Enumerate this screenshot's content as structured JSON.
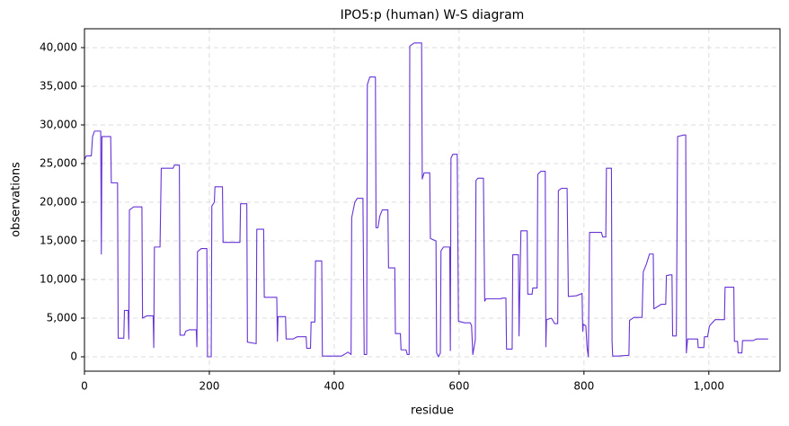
{
  "chart_data": {
    "type": "line",
    "title": "IPO5:p (human) W-S diagram",
    "x_label": "residue",
    "y_label": "observations",
    "x": [
      0,
      3,
      11,
      13,
      16,
      26,
      27,
      28,
      42,
      43,
      53,
      54,
      63,
      64,
      70,
      71,
      72,
      79,
      92,
      93,
      100,
      110,
      111,
      112,
      121,
      123,
      142,
      144,
      152,
      153,
      160,
      162,
      168,
      179,
      180,
      181,
      187,
      196,
      197,
      203,
      204,
      208,
      209,
      221,
      222,
      249,
      250,
      260,
      261,
      275,
      276,
      287,
      288,
      308,
      309,
      310,
      322,
      323,
      334,
      341,
      355,
      356,
      362,
      363,
      369,
      370,
      380,
      381,
      412,
      416,
      422,
      427,
      428,
      433,
      437,
      446,
      448,
      452,
      453,
      457,
      466,
      467,
      470,
      473,
      477,
      486,
      487,
      497,
      498,
      506,
      507,
      515,
      517,
      520,
      521,
      528,
      540,
      541,
      544,
      553,
      554,
      563,
      564,
      567,
      570,
      571,
      575,
      585,
      586,
      587,
      590,
      597,
      599,
      609,
      618,
      620,
      622,
      626,
      627,
      630,
      639,
      641,
      643,
      667,
      669,
      675,
      676,
      685,
      686,
      695,
      696,
      699,
      709,
      710,
      717,
      718,
      725,
      726,
      731,
      738,
      739,
      740,
      748,
      753,
      758,
      759,
      764,
      773,
      775,
      788,
      797,
      798,
      799,
      803,
      805,
      807,
      809,
      828,
      830,
      835,
      836,
      844,
      845,
      846,
      854,
      872,
      873,
      880,
      893,
      895,
      900,
      905,
      911,
      912,
      918,
      924,
      931,
      932,
      938,
      941,
      942,
      948,
      949,
      950,
      960,
      963,
      964,
      966,
      982,
      983,
      992,
      993,
      998,
      1001,
      1010,
      1025,
      1026,
      1040,
      1041,
      1046,
      1047,
      1053,
      1054,
      1071,
      1076,
      1095
    ],
    "series": [
      {
        "name": "observations",
        "color": "#6633d6",
        "values": [
          25500,
          26000,
          26000,
          28500,
          29200,
          29200,
          13300,
          28500,
          28500,
          22500,
          22500,
          2400,
          2400,
          6000,
          6000,
          2300,
          19000,
          19400,
          19400,
          5000,
          5300,
          5300,
          1200,
          14200,
          14200,
          24400,
          24400,
          24800,
          24800,
          2800,
          2800,
          3300,
          3500,
          3500,
          1300,
          13600,
          14000,
          14000,
          0,
          0,
          19500,
          20000,
          22000,
          22000,
          14800,
          14800,
          19800,
          19800,
          1900,
          1700,
          16500,
          16500,
          7700,
          7700,
          2000,
          5200,
          5200,
          2300,
          2300,
          2600,
          2600,
          1100,
          1100,
          4500,
          4500,
          12400,
          12400,
          100,
          100,
          300,
          600,
          300,
          18000,
          20000,
          20500,
          20500,
          300,
          300,
          35200,
          36200,
          36200,
          16700,
          16700,
          18200,
          19000,
          19000,
          11500,
          11500,
          3000,
          3000,
          900,
          900,
          300,
          300,
          40200,
          40600,
          40600,
          23000,
          23800,
          23800,
          15300,
          15000,
          500,
          0,
          500,
          13700,
          14200,
          14200,
          800,
          25700,
          26200,
          26200,
          4600,
          4400,
          4400,
          4000,
          300,
          2200,
          22800,
          23100,
          23100,
          7200,
          7500,
          7500,
          7600,
          7600,
          1000,
          1000,
          13200,
          13200,
          2700,
          16300,
          16300,
          8100,
          8100,
          8900,
          8900,
          23600,
          24000,
          24000,
          1300,
          4800,
          5000,
          4300,
          4300,
          21500,
          21800,
          21800,
          7800,
          7900,
          8200,
          3300,
          4200,
          4000,
          1200,
          0,
          16100,
          16100,
          15500,
          15500,
          24400,
          24400,
          2000,
          100,
          100,
          200,
          4700,
          5100,
          5100,
          11000,
          12000,
          13300,
          13300,
          6200,
          6500,
          6800,
          6800,
          10500,
          10600,
          10600,
          2700,
          2700,
          15500,
          28500,
          28700,
          28700,
          500,
          2300,
          2300,
          1200,
          1200,
          2600,
          2600,
          4000,
          4800,
          4800,
          9000,
          9000,
          2000,
          2000,
          500,
          500,
          2100,
          2100,
          2300,
          2300
        ]
      }
    ],
    "xlim": [
      0,
      1114
    ],
    "xticks": [
      0,
      200,
      400,
      600,
      800,
      {
        "value": 1000,
        "label": "1,000"
      }
    ],
    "ylim": [
      -1860,
      42440
    ],
    "yticks": [
      0,
      {
        "value": 5000,
        "label": "5,000"
      },
      {
        "value": 10000,
        "label": "10,000"
      },
      {
        "value": 15000,
        "label": "15,000"
      },
      {
        "value": 20000,
        "label": "20,000"
      },
      {
        "value": 25000,
        "label": "25,000"
      },
      {
        "value": 30000,
        "label": "30,000"
      },
      {
        "value": 35000,
        "label": "35,000"
      },
      {
        "value": 40000,
        "label": "40,000"
      }
    ],
    "grid": true
  }
}
